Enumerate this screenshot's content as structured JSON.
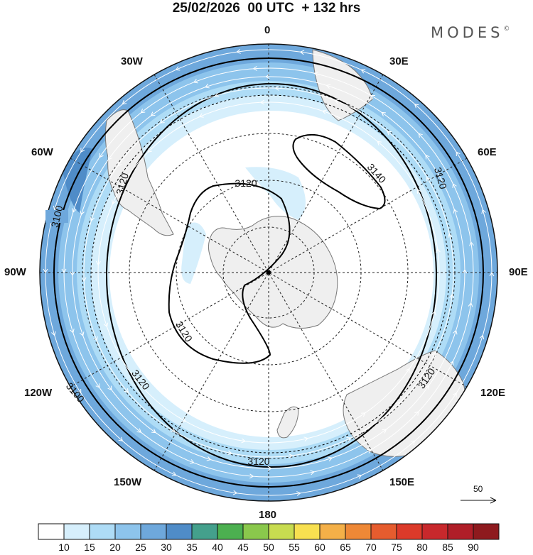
{
  "title": "25/02/2026  00 UTC  + 132 hrs",
  "logo": {
    "text": "MODES",
    "mark": "©"
  },
  "longitude_labels": {
    "lon_0": "0",
    "lon_30e": "30E",
    "lon_60e": "60E",
    "lon_90e": "90E",
    "lon_120e": "120E",
    "lon_150e": "150E",
    "lon_180": "180",
    "lon_150w": "150W",
    "lon_120w": "120W",
    "lon_90w": "90W",
    "lon_60w": "60W",
    "lon_30w": "30W"
  },
  "contour_labels": {
    "c3100_a": "3100",
    "c3100_b": "3100",
    "c3120_a": "3120",
    "c3120_b": "3120",
    "c3120_c": "3120",
    "c3120_d": "3120",
    "c3120_e": "3120",
    "c3120_f": "3120",
    "c3140": "3140"
  },
  "reference_vector": {
    "label": "50"
  },
  "colorbar": {
    "colors": [
      "#ffffff",
      "#d6effc",
      "#aedcf6",
      "#8dc4ec",
      "#6ea8dc",
      "#4f8cc8",
      "#44a08c",
      "#4cb050",
      "#8ac84c",
      "#c8dc50",
      "#f8e050",
      "#f4b048",
      "#ee8836",
      "#e65c2e",
      "#dc3a2a",
      "#c8282c",
      "#b01e28",
      "#8e1a1e"
    ],
    "labels": [
      "10",
      "15",
      "20",
      "25",
      "30",
      "35",
      "40",
      "45",
      "50",
      "55",
      "60",
      "65",
      "70",
      "75",
      "80",
      "85",
      "90"
    ]
  },
  "map_colors": {
    "land": "#efefef",
    "coast": "#777777",
    "graticule": "#222222",
    "contour": "#000000",
    "wind_arrow": "#ffffff"
  }
}
